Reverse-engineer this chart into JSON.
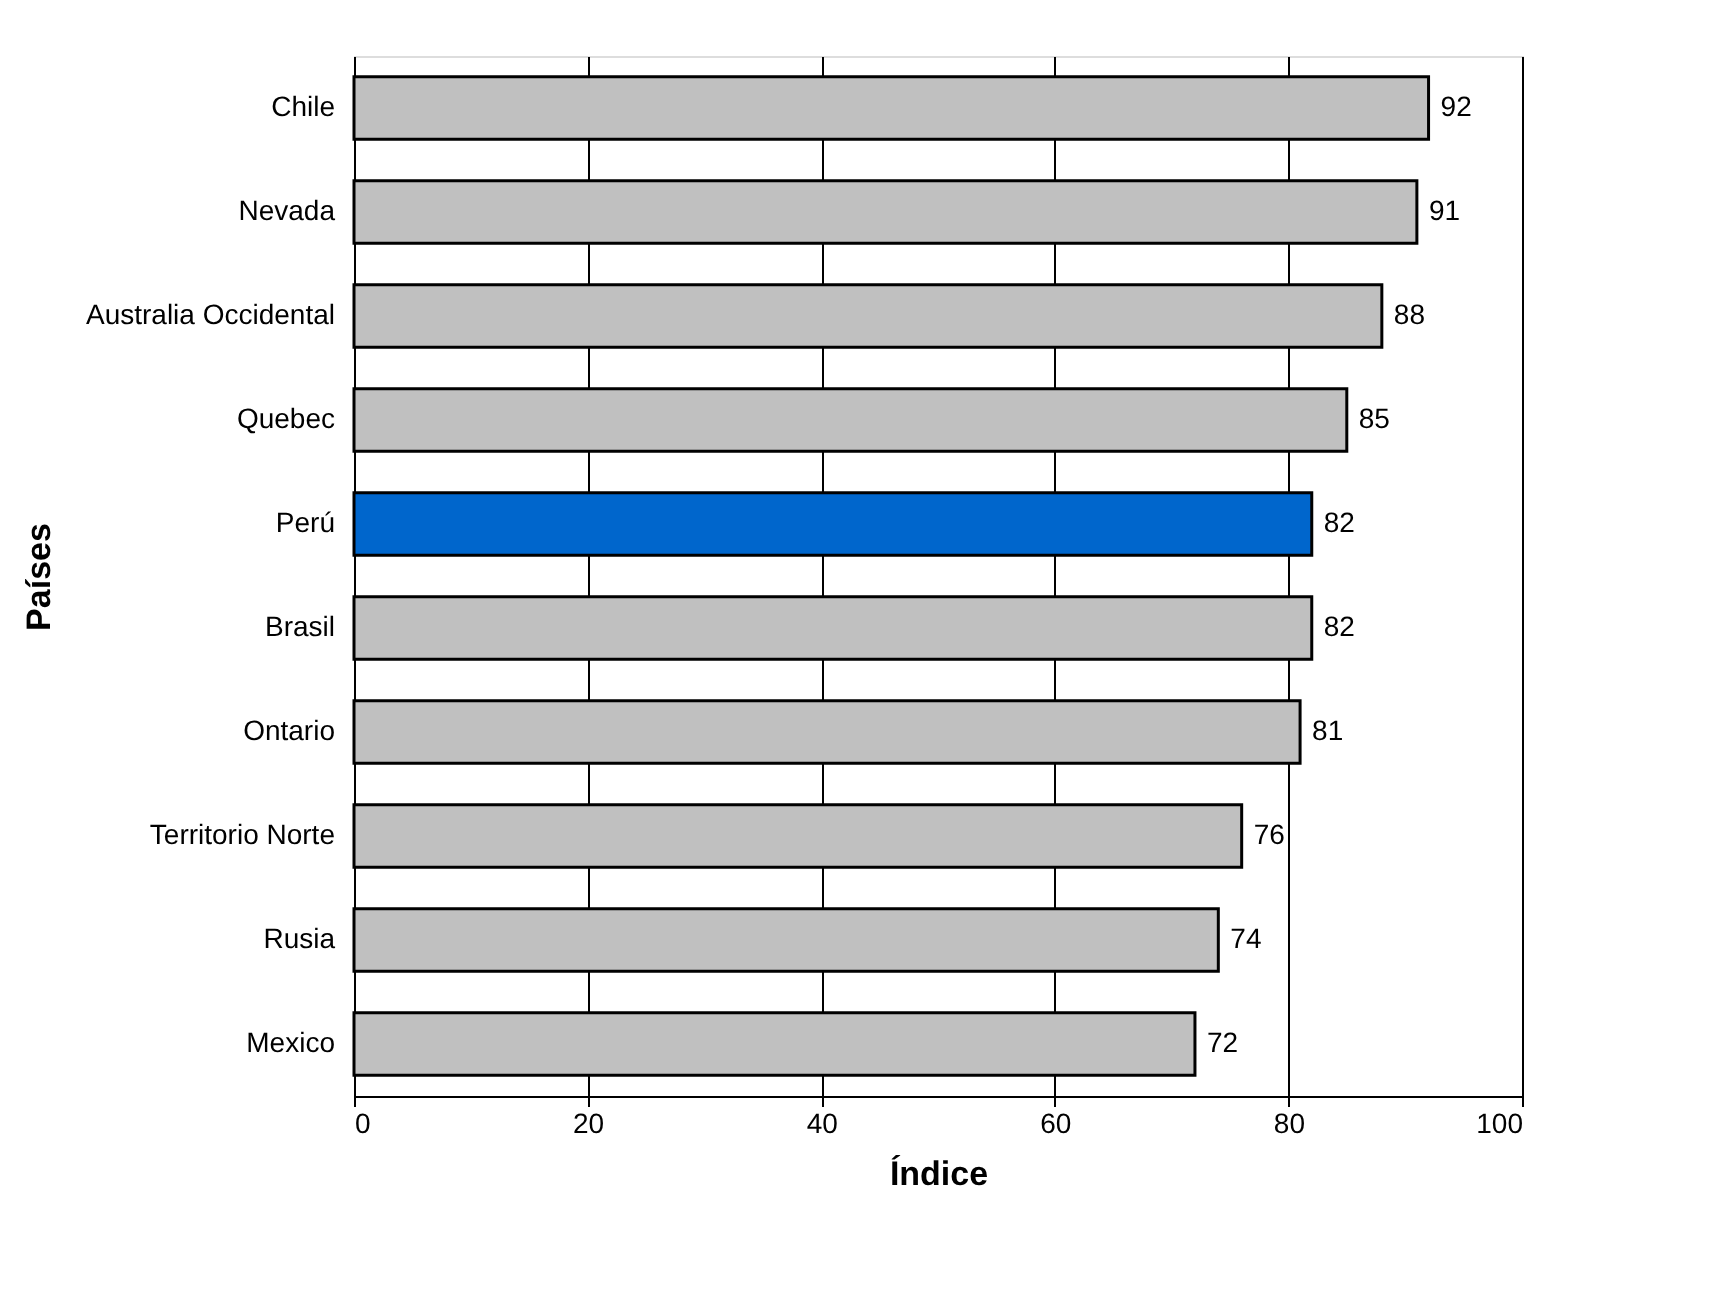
{
  "chart_data": {
    "type": "bar",
    "orientation": "horizontal",
    "xlabel": "Índice",
    "ylabel": "Países",
    "categories": [
      "Chile",
      "Nevada",
      "Australia Occidental",
      "Quebec",
      "Perú",
      "Brasil",
      "Ontario",
      "Territorio Norte",
      "Rusia",
      "Mexico"
    ],
    "values": [
      92,
      91,
      88,
      85,
      82,
      82,
      81,
      76,
      74,
      72
    ],
    "colors": [
      "#c0c0c0",
      "#c0c0c0",
      "#c0c0c0",
      "#c0c0c0",
      "#0066cc",
      "#c0c0c0",
      "#c0c0c0",
      "#c0c0c0",
      "#c0c0c0",
      "#c0c0c0"
    ],
    "xlim": [
      0,
      100
    ],
    "xticks": [
      0,
      20,
      40,
      60,
      80,
      100
    ],
    "grid": "x",
    "data_labels": true
  }
}
